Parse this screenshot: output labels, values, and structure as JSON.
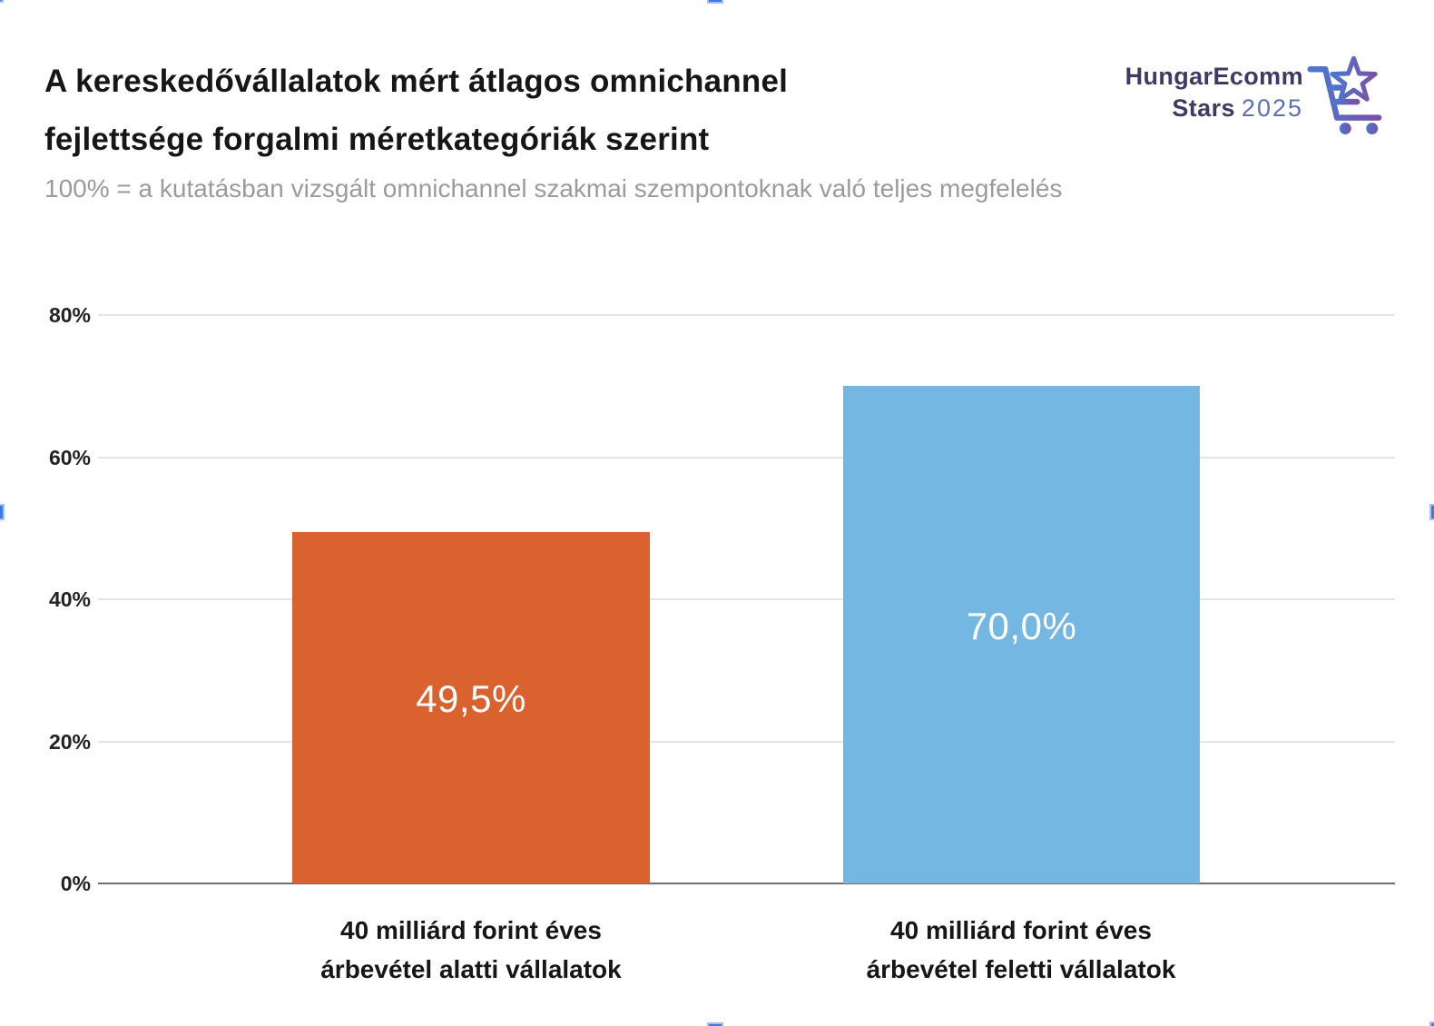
{
  "header": {
    "title_line1": "A kereskedővállalatok mért átlagos omnichannel",
    "title_line2": "fejlettsége forgalmi méretkategóriák szerint",
    "subtitle": "100% = a kutatásban vizsgált omnichannel szakmai szempontoknak való teljes megfelelés"
  },
  "logo": {
    "brand_line1": "HungarEcomm",
    "brand_line2_bold": "Stars",
    "brand_line2_year": "2025"
  },
  "chart_data": {
    "type": "bar",
    "title": "A kereskedővállalatok mért átlagos omnichannel fejlettsége forgalmi méretkategóriák szerint",
    "subtitle": "100% = a kutatásban vizsgált omnichannel szakmai szempontoknak való teljes megfelelés",
    "categories": [
      "40 milliárd forint éves árbevétel alatti vállalatok",
      "40 milliárd forint éves árbevétel feletti vállalatok"
    ],
    "category_lines": [
      [
        "40 milliárd forint éves",
        "árbevétel alatti vállalatok"
      ],
      [
        "40 milliárd forint éves",
        "árbevétel feletti vállalatok"
      ]
    ],
    "values": [
      49.5,
      70.0
    ],
    "value_labels": [
      "49,5%",
      "70,0%"
    ],
    "bar_colors": [
      "#d9622f",
      "#73b7e2"
    ],
    "xlabel": "",
    "ylabel": "",
    "ylim": [
      0,
      80
    ],
    "yticks": [
      "0%",
      "20%",
      "40%",
      "60%",
      "80%"
    ],
    "grid": true,
    "legend": "none",
    "value_label_color": "#ffffff"
  },
  "theme": {
    "handle-blue": "#3f76e8",
    "logo-navy": "#3d3a66",
    "logo-year-blue": "#5c6fb6",
    "logo-grad-start": "#4879d3",
    "logo-grad-end": "#7b50a4"
  }
}
